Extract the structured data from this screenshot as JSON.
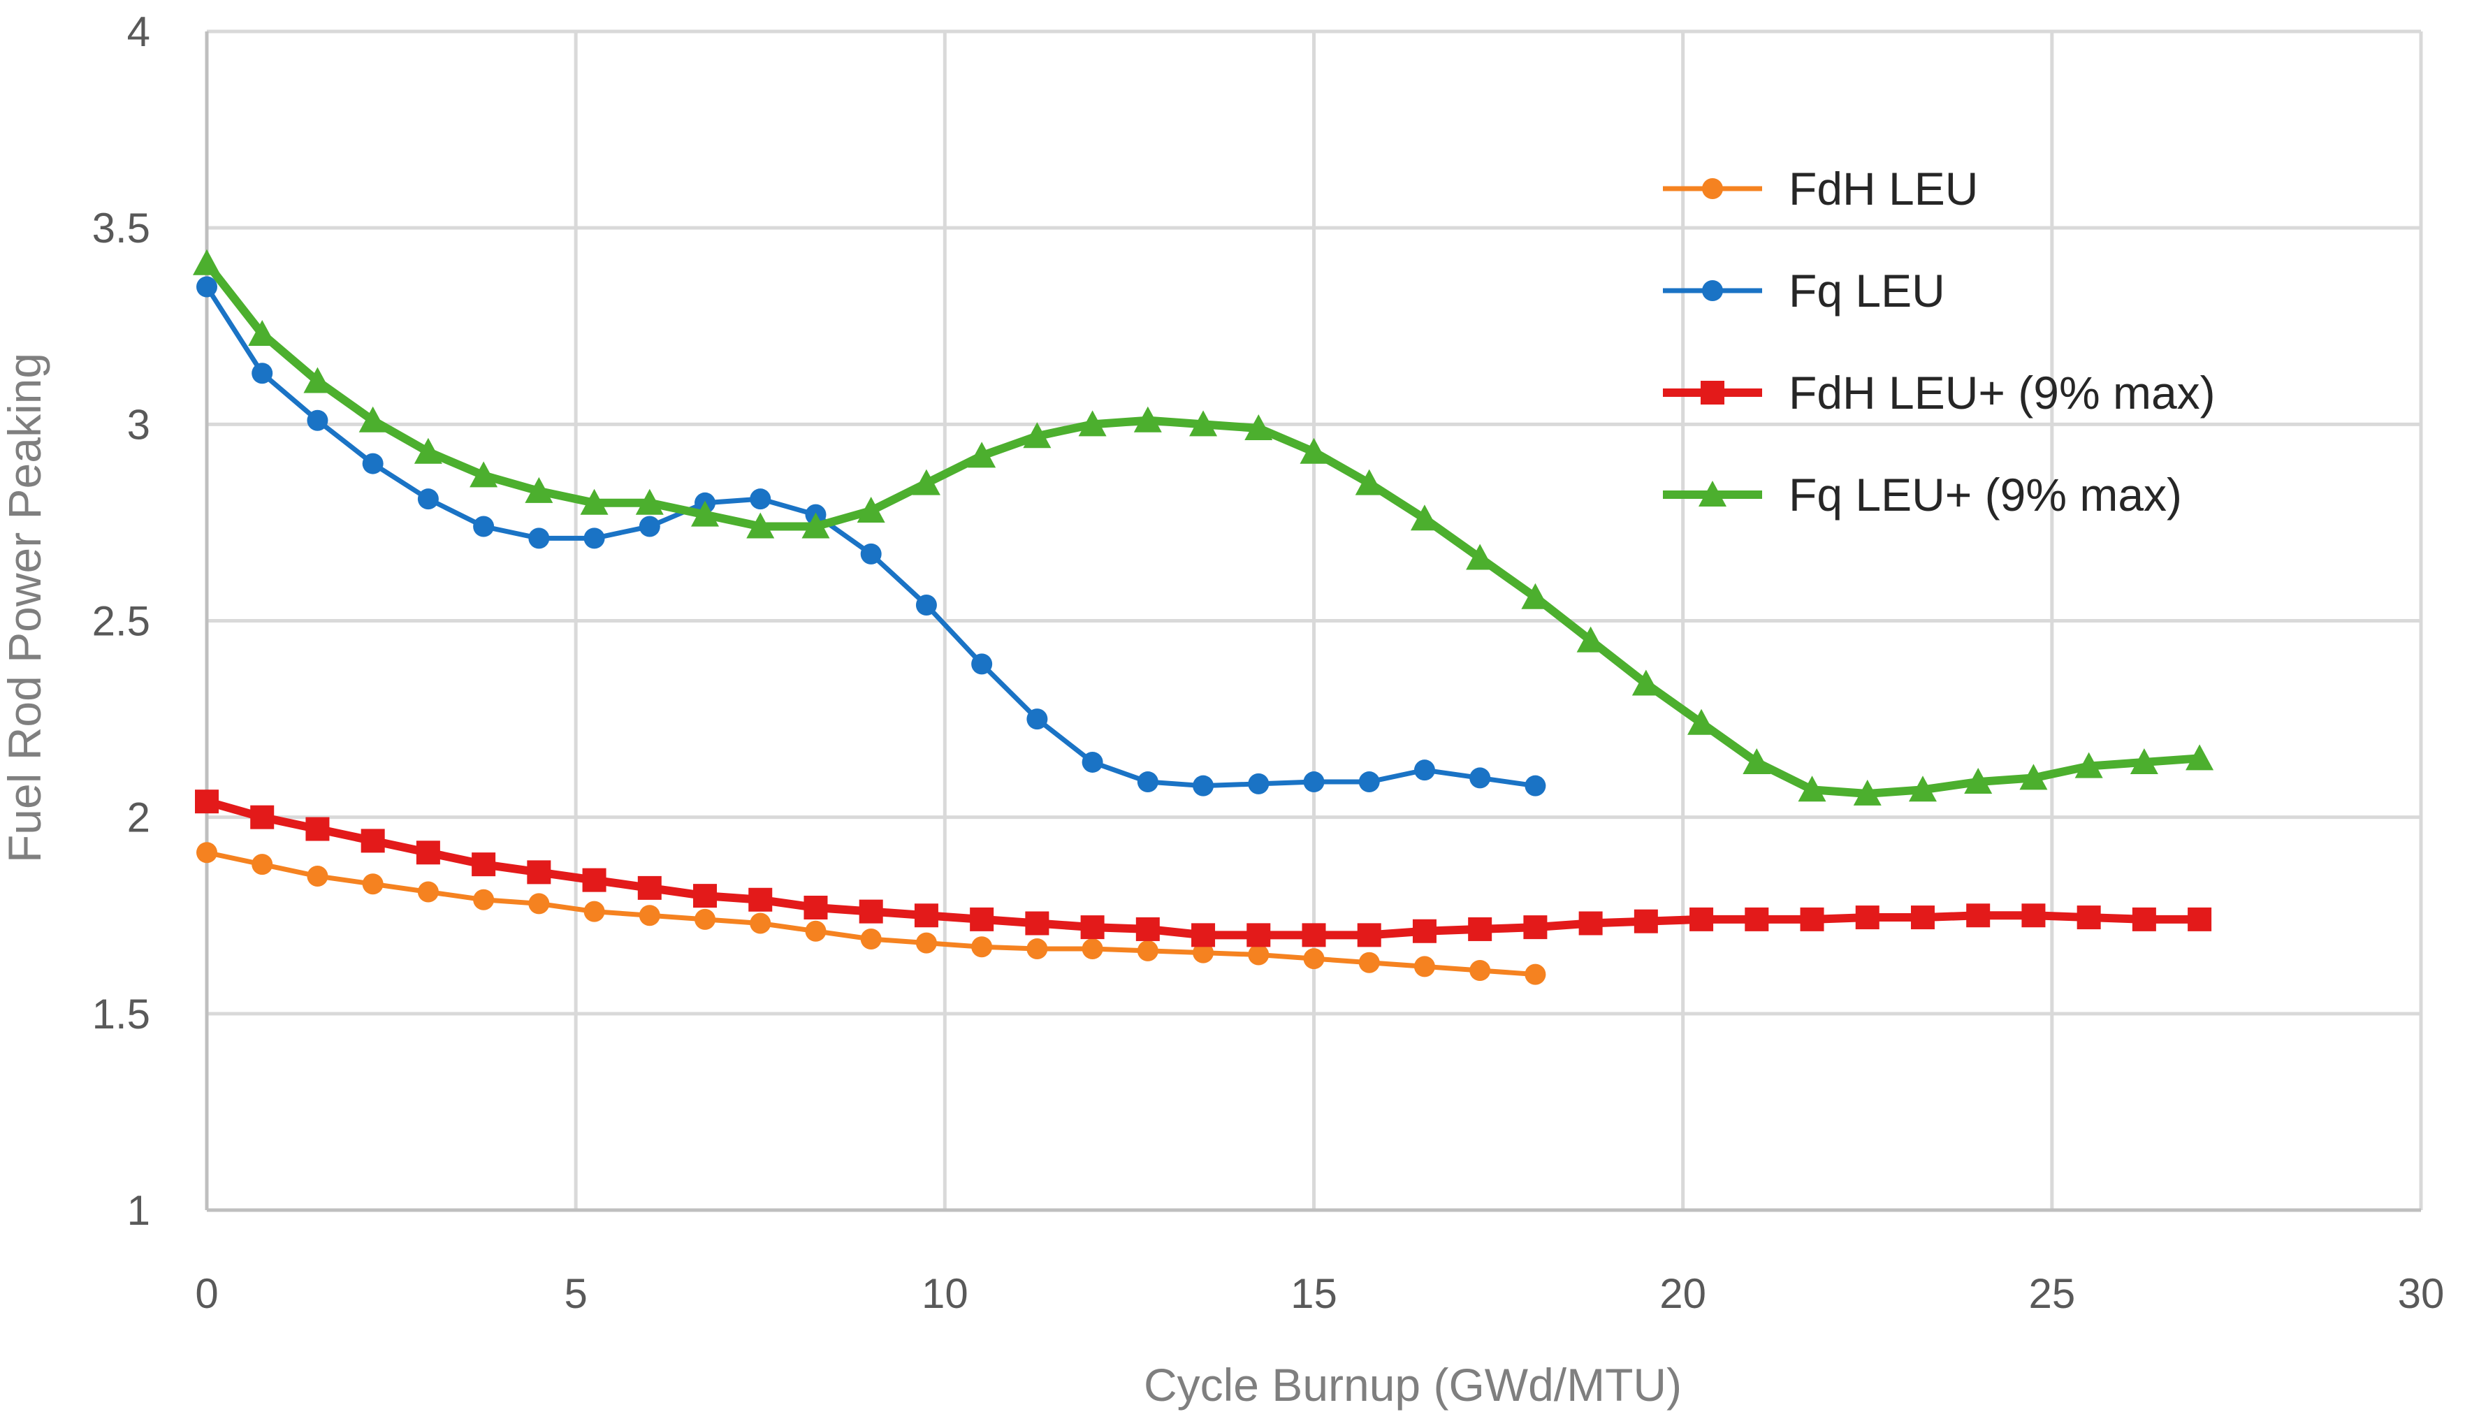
{
  "chart_data": {
    "type": "line",
    "title": "",
    "xlabel": "Cycle Burnup (GWd/MTU)",
    "ylabel": "Fuel Rod Power Peaking",
    "xlim": [
      0,
      30
    ],
    "ylim": [
      1,
      4
    ],
    "x_ticks": [
      0,
      5,
      10,
      15,
      20,
      25,
      30
    ],
    "x_tick_labels": [
      "0",
      "5",
      "10",
      "15",
      "20",
      "25",
      "30"
    ],
    "y_ticks": [
      1,
      1.5,
      2,
      2.5,
      3,
      3.5,
      4
    ],
    "y_tick_labels": [
      "1",
      "1.5",
      "2",
      "2.5",
      "3",
      "3.5",
      "4"
    ],
    "grid": true,
    "legend_position": "top-right",
    "series": [
      {
        "name": "FdH LEU",
        "color": "#f58220",
        "marker": "circle",
        "line_width": 7,
        "x": [
          0,
          0.75,
          1.5,
          2.25,
          3.0,
          3.75,
          4.5,
          5.25,
          6.0,
          6.75,
          7.5,
          8.25,
          9.0,
          9.75,
          10.5,
          11.25,
          12.0,
          12.75,
          13.5,
          14.25,
          15.0,
          15.75,
          16.5,
          17.25,
          18.0
        ],
        "y": [
          1.91,
          1.88,
          1.85,
          1.83,
          1.81,
          1.79,
          1.78,
          1.76,
          1.75,
          1.74,
          1.73,
          1.71,
          1.69,
          1.68,
          1.67,
          1.665,
          1.665,
          1.66,
          1.655,
          1.65,
          1.64,
          1.63,
          1.62,
          1.61,
          1.6
        ]
      },
      {
        "name": "Fq LEU",
        "color": "#1a73c5",
        "marker": "circle",
        "line_width": 7,
        "x": [
          0,
          0.75,
          1.5,
          2.25,
          3.0,
          3.75,
          4.5,
          5.25,
          6.0,
          6.75,
          7.5,
          8.25,
          9.0,
          9.75,
          10.5,
          11.25,
          12.0,
          12.75,
          13.5,
          14.25,
          15.0,
          15.75,
          16.5,
          17.25,
          18.0
        ],
        "y": [
          3.35,
          3.13,
          3.01,
          2.9,
          2.81,
          2.74,
          2.71,
          2.71,
          2.74,
          2.8,
          2.81,
          2.77,
          2.67,
          2.54,
          2.39,
          2.25,
          2.14,
          2.09,
          2.08,
          2.085,
          2.09,
          2.09,
          2.12,
          2.1,
          2.08
        ]
      },
      {
        "name": "FdH LEU+ (9% max)",
        "color": "#e31a1a",
        "marker": "square",
        "line_width": 12,
        "x": [
          0,
          0.75,
          1.5,
          2.25,
          3.0,
          3.75,
          4.5,
          5.25,
          6.0,
          6.75,
          7.5,
          8.25,
          9.0,
          9.75,
          10.5,
          11.25,
          12.0,
          12.75,
          13.5,
          14.25,
          15.0,
          15.75,
          16.5,
          17.25,
          18.0,
          18.75,
          19.5,
          20.25,
          21.0,
          21.75,
          22.5,
          23.25,
          24.0,
          24.75,
          25.5,
          26.25,
          27.0
        ],
        "y": [
          2.04,
          2.0,
          1.97,
          1.94,
          1.91,
          1.88,
          1.86,
          1.84,
          1.82,
          1.8,
          1.79,
          1.77,
          1.76,
          1.75,
          1.74,
          1.73,
          1.72,
          1.715,
          1.7,
          1.7,
          1.7,
          1.7,
          1.71,
          1.715,
          1.72,
          1.73,
          1.735,
          1.74,
          1.74,
          1.74,
          1.745,
          1.745,
          1.75,
          1.75,
          1.745,
          1.74,
          1.74
        ]
      },
      {
        "name": "Fq LEU+ (9% max)",
        "color": "#4caf2e",
        "marker": "triangle",
        "line_width": 12,
        "x": [
          0,
          0.75,
          1.5,
          2.25,
          3.0,
          3.75,
          4.5,
          5.25,
          6.0,
          6.75,
          7.5,
          8.25,
          9.0,
          9.75,
          10.5,
          11.25,
          12.0,
          12.75,
          13.5,
          14.25,
          15.0,
          15.75,
          16.5,
          17.25,
          18.0,
          18.75,
          19.5,
          20.25,
          21.0,
          21.75,
          22.5,
          23.25,
          24.0,
          24.75,
          25.5,
          26.25,
          27.0
        ],
        "y": [
          3.41,
          3.23,
          3.11,
          3.01,
          2.93,
          2.87,
          2.83,
          2.8,
          2.8,
          2.77,
          2.74,
          2.74,
          2.78,
          2.85,
          2.92,
          2.97,
          3.0,
          3.01,
          3.0,
          2.99,
          2.93,
          2.85,
          2.76,
          2.66,
          2.56,
          2.45,
          2.34,
          2.24,
          2.14,
          2.07,
          2.06,
          2.07,
          2.09,
          2.1,
          2.13,
          2.14,
          2.15
        ]
      }
    ]
  }
}
